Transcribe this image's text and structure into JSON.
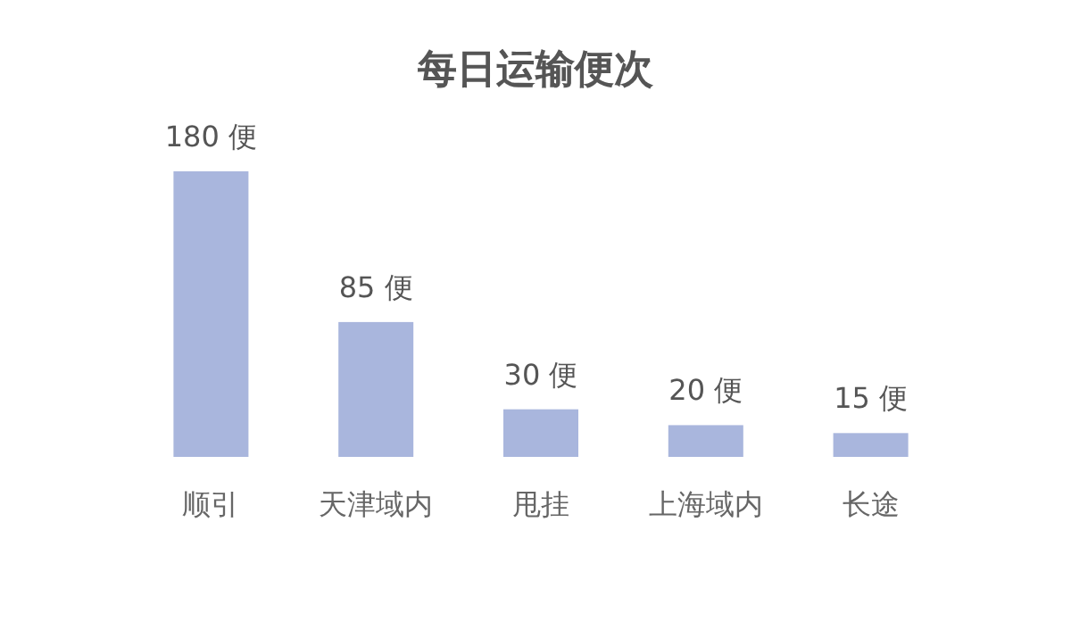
{
  "chart_data": {
    "type": "bar",
    "title": "每日运输便次",
    "categories": [
      "顺引",
      "天津域内",
      "甩挂",
      "上海域内",
      "长途"
    ],
    "values": [
      180,
      85,
      30,
      20,
      15
    ],
    "value_labels": [
      "180 便",
      "85 便",
      "30 便",
      "20 便",
      "15 便"
    ],
    "color": "#a9b6dd"
  }
}
